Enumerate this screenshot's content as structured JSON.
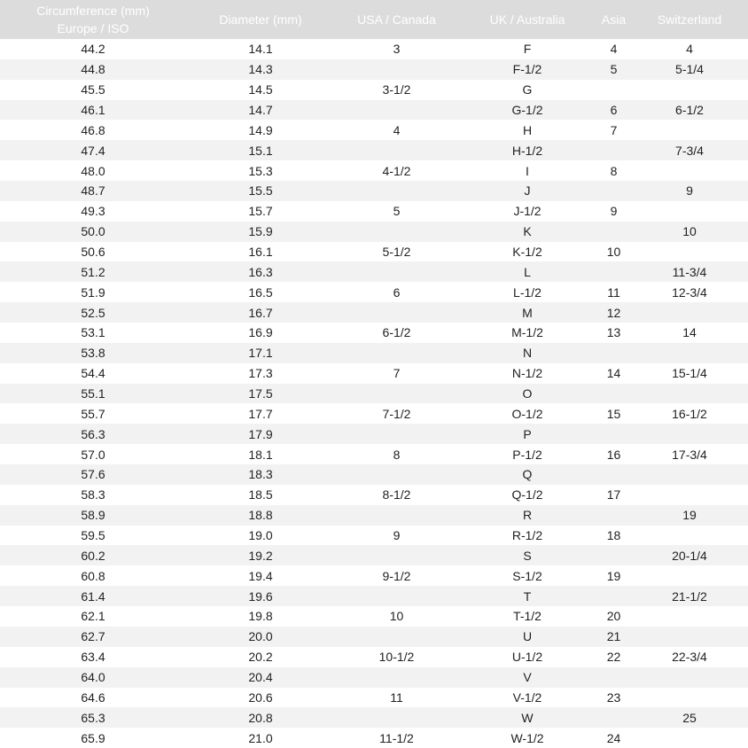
{
  "headers": [
    "Circumference (mm)\nEurope / ISO",
    "Diameter (mm)",
    "USA / Canada",
    "UK / Australia",
    "Asia",
    "Switzerland"
  ],
  "header_line1": "Circumference (mm)",
  "header_line2": "Europe / ISO",
  "colors": {
    "header_bg": "#dcdcdc",
    "header_text": "#ffffff",
    "alt_row": "#f2f2f2"
  },
  "rows": [
    [
      "44.2",
      "14.1",
      "3",
      "F",
      "4",
      "4"
    ],
    [
      "44.8",
      "14.3",
      "",
      "F-1/2",
      "5",
      "5-1/4"
    ],
    [
      "45.5",
      "14.5",
      "3-1/2",
      "G",
      "",
      ""
    ],
    [
      "46.1",
      "14.7",
      "",
      "G-1/2",
      "6",
      "6-1/2"
    ],
    [
      "46.8",
      "14.9",
      "4",
      "H",
      "7",
      ""
    ],
    [
      "47.4",
      "15.1",
      "",
      "H-1/2",
      "",
      "7-3/4"
    ],
    [
      "48.0",
      "15.3",
      "4-1/2",
      "I",
      "8",
      ""
    ],
    [
      "48.7",
      "15.5",
      "",
      "J",
      "",
      "9"
    ],
    [
      "49.3",
      "15.7",
      "5",
      "J-1/2",
      "9",
      ""
    ],
    [
      "50.0",
      "15.9",
      "",
      "K",
      "",
      "10"
    ],
    [
      "50.6",
      "16.1",
      "5-1/2",
      "K-1/2",
      "10",
      ""
    ],
    [
      "51.2",
      "16.3",
      "",
      "L",
      "",
      "11-3/4"
    ],
    [
      "51.9",
      "16.5",
      "6",
      "L-1/2",
      "11",
      "12-3/4"
    ],
    [
      "52.5",
      "16.7",
      "",
      "M",
      "12",
      ""
    ],
    [
      "53.1",
      "16.9",
      "6-1/2",
      "M-1/2",
      "13",
      "14"
    ],
    [
      "53.8",
      "17.1",
      "",
      "N",
      "",
      ""
    ],
    [
      "54.4",
      "17.3",
      "7",
      "N-1/2",
      "14",
      "15-1/4"
    ],
    [
      "55.1",
      "17.5",
      "",
      "O",
      "",
      ""
    ],
    [
      "55.7",
      "17.7",
      "7-1/2",
      "O-1/2",
      "15",
      "16-1/2"
    ],
    [
      "56.3",
      "17.9",
      "",
      "P",
      "",
      ""
    ],
    [
      "57.0",
      "18.1",
      "8",
      "P-1/2",
      "16",
      "17-3/4"
    ],
    [
      "57.6",
      "18.3",
      "",
      "Q",
      "",
      ""
    ],
    [
      "58.3",
      "18.5",
      "8-1/2",
      "Q-1/2",
      "17",
      ""
    ],
    [
      "58.9",
      "18.8",
      "",
      "R",
      "",
      "19"
    ],
    [
      "59.5",
      "19.0",
      "9",
      "R-1/2",
      "18",
      ""
    ],
    [
      "60.2",
      "19.2",
      "",
      "S",
      "",
      "20-1/4"
    ],
    [
      "60.8",
      "19.4",
      "9-1/2",
      "S-1/2",
      "19",
      ""
    ],
    [
      "61.4",
      "19.6",
      "",
      "T",
      "",
      "21-1/2"
    ],
    [
      "62.1",
      "19.8",
      "10",
      "T-1/2",
      "20",
      ""
    ],
    [
      "62.7",
      "20.0",
      "",
      "U",
      "21",
      ""
    ],
    [
      "63.4",
      "20.2",
      "10-1/2",
      "U-1/2",
      "22",
      "22-3/4"
    ],
    [
      "64.0",
      "20.4",
      "",
      "V",
      "",
      ""
    ],
    [
      "64.6",
      "20.6",
      "11",
      "V-1/2",
      "23",
      ""
    ],
    [
      "65.3",
      "20.8",
      "",
      "W",
      "",
      "25"
    ],
    [
      "65.9",
      "21.0",
      "11-1/2",
      "W-1/2",
      "24",
      ""
    ]
  ]
}
